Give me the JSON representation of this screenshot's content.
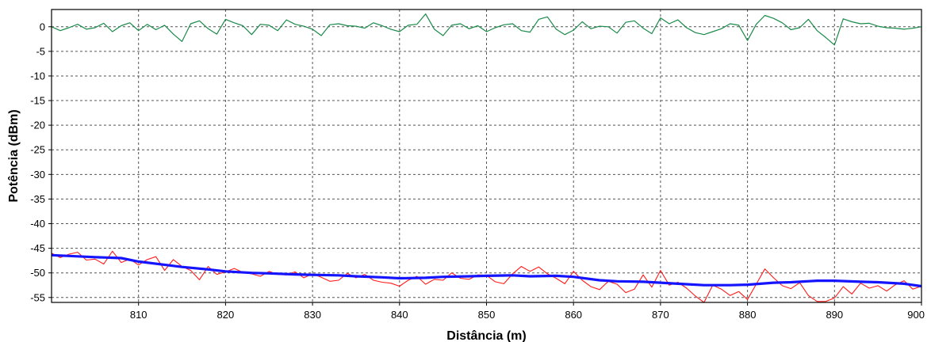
{
  "chart_data": {
    "type": "line",
    "title": "",
    "xlabel": "Distância (m)",
    "ylabel": "Potência (dBm)",
    "xlim": [
      800,
      900
    ],
    "ylim": [
      -56,
      3.5
    ],
    "grid": true,
    "legend": "none",
    "x_ticks": [
      810,
      820,
      830,
      840,
      850,
      860,
      870,
      880,
      890,
      900
    ],
    "y_ticks": [
      0,
      -5,
      -10,
      -15,
      -20,
      -25,
      -30,
      -35,
      -40,
      -45,
      -50,
      -55
    ],
    "series": [
      {
        "color": "#1a8a4a",
        "x": [
          800,
          801,
          802,
          803,
          804,
          805,
          806,
          807,
          808,
          809,
          810,
          811,
          812,
          813,
          814,
          815,
          816,
          817,
          818,
          819,
          820,
          821,
          822,
          823,
          824,
          825,
          826,
          827,
          828,
          829,
          830,
          831,
          832,
          833,
          834,
          835,
          836,
          837,
          838,
          839,
          840,
          841,
          842,
          843,
          844,
          845,
          846,
          847,
          848,
          849,
          850,
          851,
          852,
          853,
          854,
          855,
          856,
          857,
          858,
          859,
          860,
          861,
          862,
          863,
          864,
          865,
          866,
          867,
          868,
          869,
          870,
          871,
          872,
          873,
          874,
          875,
          876,
          877,
          878,
          879,
          880,
          881,
          882,
          883,
          884,
          885,
          886,
          887,
          888,
          889,
          890,
          891,
          892,
          893,
          894,
          895,
          896,
          897,
          898,
          899,
          900
        ],
        "values": [
          0.0,
          -0.8,
          -0.2,
          0.5,
          -0.5,
          -0.2,
          0.7,
          -1.0,
          0.2,
          0.8,
          -0.8,
          0.5,
          -0.6,
          0.3,
          -1.5,
          -3.0,
          0.6,
          1.2,
          -0.4,
          -1.5,
          1.5,
          0.8,
          0.2,
          -1.6,
          0.5,
          0.3,
          -0.8,
          1.4,
          0.5,
          0.1,
          -0.5,
          -1.8,
          0.4,
          0.6,
          0.2,
          0.1,
          -0.3,
          0.8,
          0.2,
          -0.5,
          -1.0,
          0.3,
          0.5,
          2.6,
          -0.5,
          -1.8,
          0.3,
          0.6,
          -0.4,
          0.2,
          -1.0,
          -0.2,
          0.4,
          0.6,
          -0.8,
          -1.1,
          1.5,
          2.0,
          -0.5,
          -1.6,
          -0.7,
          1.0,
          -0.4,
          0.1,
          0.0,
          -1.3,
          0.9,
          1.2,
          -0.3,
          -1.4,
          1.8,
          0.6,
          1.4,
          -0.2,
          -1.2,
          -1.6,
          -1.0,
          -0.4,
          0.6,
          0.3,
          -2.8,
          0.5,
          2.3,
          1.7,
          0.8,
          -0.6,
          -0.2,
          1.5,
          -0.8,
          -2.2,
          -3.7,
          1.6,
          1.0,
          0.6,
          0.7,
          0.1,
          -0.2,
          -0.3,
          -0.5,
          -0.3,
          0.0
        ]
      },
      {
        "color": "#ff1a1a",
        "x": [
          800,
          801,
          802,
          803,
          804,
          805,
          806,
          807,
          808,
          809,
          810,
          811,
          812,
          813,
          814,
          815,
          816,
          817,
          818,
          819,
          820,
          821,
          822,
          823,
          824,
          825,
          826,
          827,
          828,
          829,
          830,
          831,
          832,
          833,
          834,
          835,
          836,
          837,
          838,
          839,
          840,
          841,
          842,
          843,
          844,
          845,
          846,
          847,
          848,
          849,
          850,
          851,
          852,
          853,
          854,
          855,
          856,
          857,
          858,
          859,
          860,
          861,
          862,
          863,
          864,
          865,
          866,
          867,
          868,
          869,
          870,
          871,
          872,
          873,
          874,
          875,
          876,
          877,
          878,
          879,
          880,
          881,
          882,
          883,
          884,
          885,
          886,
          887,
          888,
          889,
          890,
          891,
          892,
          893,
          894,
          895,
          896,
          897,
          898,
          899,
          900
        ],
        "values": [
          -46.0,
          -46.9,
          -46.2,
          -45.8,
          -47.4,
          -47.2,
          -48.2,
          -45.6,
          -47.9,
          -47.2,
          -48.4,
          -47.3,
          -46.7,
          -49.5,
          -47.3,
          -48.7,
          -49.5,
          -51.4,
          -48.7,
          -50.3,
          -49.8,
          -49.1,
          -49.9,
          -50.2,
          -50.7,
          -49.7,
          -50.3,
          -50.4,
          -49.8,
          -51.0,
          -50.2,
          -50.9,
          -51.7,
          -51.5,
          -50.1,
          -51.0,
          -50.3,
          -51.5,
          -51.9,
          -52.1,
          -52.7,
          -51.5,
          -50.7,
          -52.3,
          -51.3,
          -51.5,
          -50.0,
          -51.1,
          -51.3,
          -50.4,
          -50.5,
          -51.8,
          -52.2,
          -50.2,
          -48.7,
          -49.7,
          -48.8,
          -50.2,
          -51.1,
          -52.2,
          -49.7,
          -51.5,
          -52.8,
          -53.4,
          -51.7,
          -52.3,
          -54.0,
          -53.3,
          -50.4,
          -52.9,
          -49.5,
          -52.5,
          -51.9,
          -53.1,
          -54.7,
          -56.0,
          -52.5,
          -53.3,
          -54.6,
          -53.8,
          -55.4,
          -52.3,
          -49.2,
          -51.0,
          -52.6,
          -53.2,
          -52.0,
          -54.6,
          -55.8,
          -55.8,
          -55.1,
          -52.8,
          -54.3,
          -52.1,
          -53.1,
          -52.6,
          -53.7,
          -52.4,
          -51.6,
          -53.3,
          -52.7
        ]
      },
      {
        "color": "#1414ff",
        "x": [
          800,
          805,
          808,
          810,
          815,
          818,
          820,
          823,
          825,
          828,
          830,
          833,
          835,
          838,
          840,
          843,
          845,
          848,
          850,
          853,
          855,
          858,
          860,
          863,
          865,
          868,
          870,
          873,
          875,
          878,
          880,
          883,
          885,
          888,
          890,
          893,
          895,
          898,
          900
        ],
        "values": [
          -46.4,
          -46.8,
          -47.0,
          -47.7,
          -48.8,
          -49.3,
          -49.7,
          -50.0,
          -50.1,
          -50.3,
          -50.4,
          -50.5,
          -50.7,
          -50.9,
          -51.1,
          -51.0,
          -50.8,
          -50.7,
          -50.6,
          -50.5,
          -50.7,
          -50.6,
          -50.8,
          -51.5,
          -51.7,
          -51.8,
          -52.0,
          -52.3,
          -52.5,
          -52.5,
          -52.4,
          -52.0,
          -51.9,
          -51.6,
          -51.6,
          -51.8,
          -51.9,
          -52.2,
          -52.7
        ]
      }
    ]
  }
}
